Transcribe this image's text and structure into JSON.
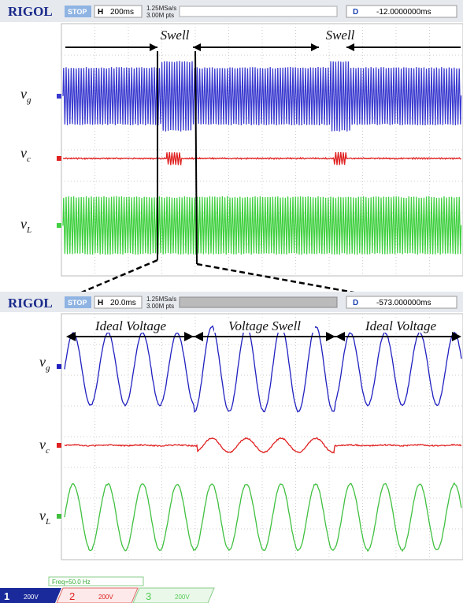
{
  "top_screen": {
    "header": {
      "brand": "RIGOL",
      "status": "STOP",
      "h_label": "H",
      "timebase": "200ms",
      "sample_rate": "1.25MSa/s",
      "memory": "3.00M pts",
      "d_label": "D",
      "delay": "-12.0000000ms"
    },
    "annotations": [
      "Swell",
      "Swell"
    ],
    "channels": [
      {
        "symbol": "v",
        "subscript": "g"
      },
      {
        "symbol": "v",
        "subscript": "c"
      },
      {
        "symbol": "v",
        "subscript": "L"
      }
    ]
  },
  "bottom_screen": {
    "header": {
      "brand": "RIGOL",
      "status": "STOP",
      "h_label": "H",
      "timebase": "20.0ms",
      "sample_rate": "1.25MSa/s",
      "memory": "3.00M pts",
      "d_label": "D",
      "delay": "-573.000000ms"
    },
    "annotations": [
      "Ideal Voltage",
      "Voltage Swell",
      "Ideal Voltage"
    ],
    "channels": [
      {
        "symbol": "v",
        "subscript": "g"
      },
      {
        "symbol": "v",
        "subscript": "c"
      },
      {
        "symbol": "v",
        "subscript": "L"
      }
    ]
  },
  "status_bar": {
    "frequency": "Freq=50.0 Hz",
    "channels": [
      {
        "number": "1",
        "scale": "200V"
      },
      {
        "number": "2",
        "scale": "200V"
      },
      {
        "number": "3",
        "scale": "200V"
      }
    ]
  }
}
